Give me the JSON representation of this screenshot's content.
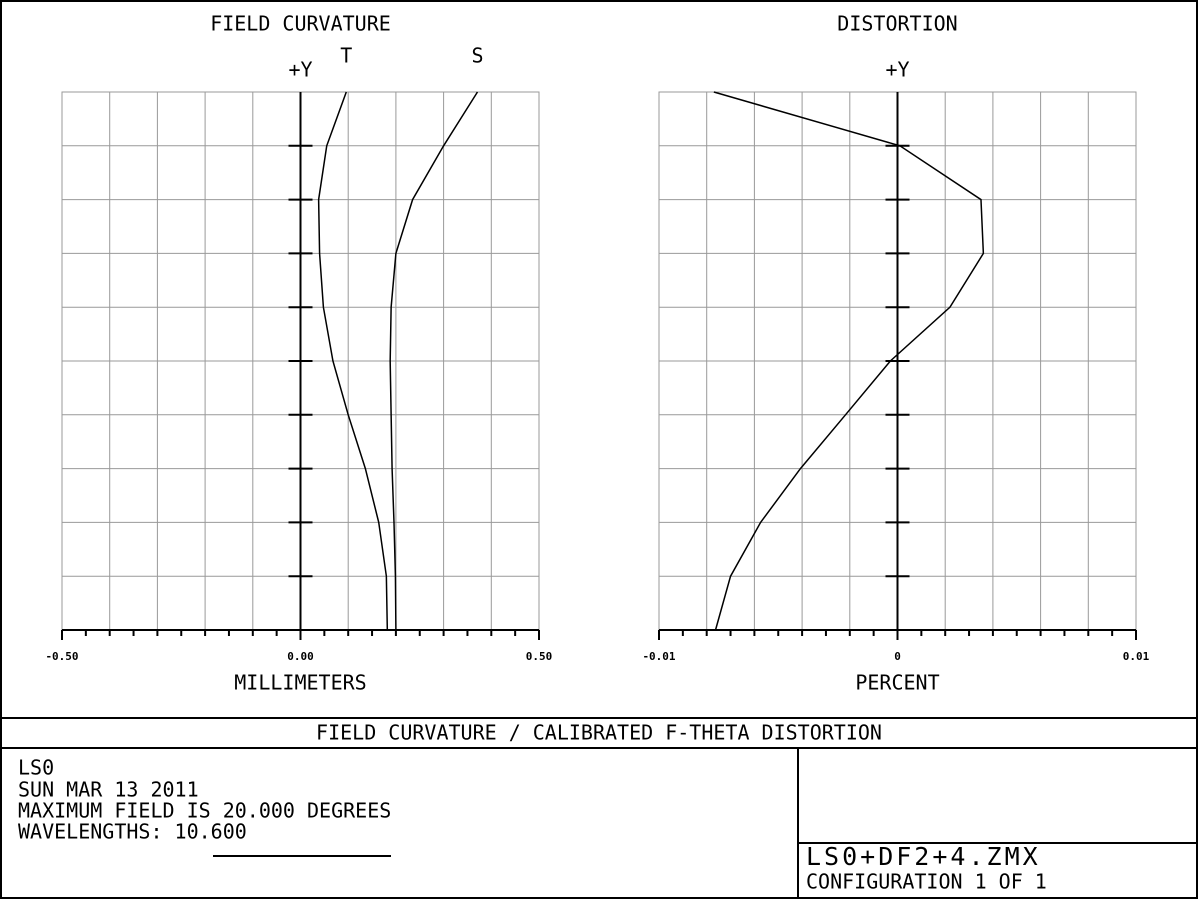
{
  "chart_data": [
    {
      "type": "line",
      "title": "FIELD CURVATURE",
      "y_label": "+Y",
      "x_label": "MILLIMETERS",
      "y": [
        0,
        0.1,
        0.2,
        0.3,
        0.4,
        0.5,
        0.6,
        0.7,
        0.8,
        0.9,
        1.0
      ],
      "series": [
        {
          "name": "T",
          "color": "#000000",
          "values": [
            0.182,
            0.18,
            0.164,
            0.136,
            0.1,
            0.068,
            0.048,
            0.04,
            0.038,
            0.055,
            0.096
          ]
        },
        {
          "name": "S",
          "color": "#000000",
          "values": [
            0.2,
            0.199,
            0.196,
            0.192,
            0.19,
            0.188,
            0.19,
            0.2,
            0.235,
            0.3,
            0.371
          ]
        }
      ],
      "xlim": [
        -0.5,
        0.5
      ],
      "xticks": [
        {
          "value": -0.5,
          "label": "-0.50"
        },
        {
          "value": 0,
          "label": "0.00"
        },
        {
          "value": 0.5,
          "label": "0.50"
        }
      ],
      "ylim": [
        0,
        1
      ],
      "yticks": [
        0.1,
        0.2,
        0.3,
        0.4,
        0.5,
        0.6,
        0.7,
        0.8,
        0.9
      ],
      "grid": true
    },
    {
      "type": "line",
      "title": "DISTORTION",
      "y_label": "+Y",
      "x_label": "PERCENT",
      "y": [
        0,
        0.1,
        0.2,
        0.3,
        0.4,
        0.5,
        0.6,
        0.7,
        0.8,
        0.9,
        1.0
      ],
      "series": [
        {
          "color": "#000000",
          "values": [
            -0.00763,
            -0.007,
            -0.00574,
            -0.00407,
            -0.00218,
            -0.0003,
            0.0022,
            0.0036,
            0.0035,
            0.0001,
            -0.0077
          ]
        }
      ],
      "xlim": [
        -0.01,
        0.01
      ],
      "xticks": [
        -0.01,
        0,
        0.01
      ],
      "ylim": [
        0,
        1
      ],
      "yticks": [
        0.1,
        0.2,
        0.3,
        0.4,
        0.5,
        0.6,
        0.7,
        0.8,
        0.9
      ],
      "grid": true
    }
  ],
  "title_block": {
    "title": "FIELD CURVATURE / CALIBRATED F-THETA DISTORTION",
    "lines": [
      "LS0",
      "SUN MAR 13 2011",
      "MAXIMUM FIELD IS 20.000 DEGREES",
      "WAVELENGTHS: 10.600"
    ],
    "file": "LS0+DF2+4.ZMX",
    "configuration": "CONFIGURATION 1 OF 1"
  }
}
